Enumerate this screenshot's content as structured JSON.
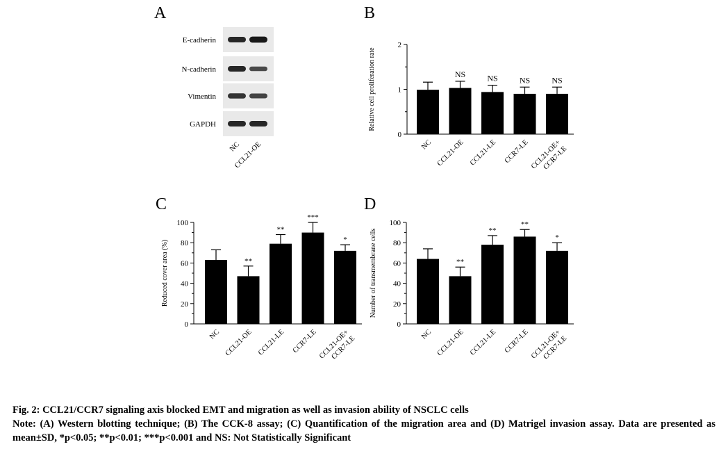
{
  "figure": {
    "caption_title": "Fig. 2: CCL21/CCR7 signaling axis blocked EMT and migration as well as invasion ability of NSCLC cells",
    "caption_note": "Note: (A) Western blotting technique; (B) The CCK-8 assay; (C) Quantification of the migration area and (D) Matrigel invasion assay. Data are presented as mean±SD, *p<0.05; **p<0.01; ***p<0.001 and NS: Not Statistically Significant"
  },
  "panel_a": {
    "letter": "A",
    "proteins": [
      "E-cadherin",
      "N-cadherin",
      "Vimentin",
      "GAPDH"
    ],
    "lanes": [
      "NC",
      "CCL21-OE"
    ],
    "band_intensity": [
      [
        0.85,
        0.95
      ],
      [
        0.85,
        0.6
      ],
      [
        0.75,
        0.65
      ],
      [
        0.85,
        0.85
      ]
    ]
  },
  "chart_data": [
    {
      "panel": "B",
      "type": "bar",
      "categories": [
        [
          "NC"
        ],
        [
          "CCL21-OE"
        ],
        [
          "CCL21-LE"
        ],
        [
          "CCR7-LE"
        ],
        [
          "CCL21-OE+",
          "CCR7-LE"
        ]
      ],
      "values": [
        0.99,
        1.03,
        0.94,
        0.9,
        0.9
      ],
      "errors": [
        0.17,
        0.15,
        0.15,
        0.15,
        0.15
      ],
      "annotations": [
        "",
        "NS",
        "NS",
        "NS",
        "NS"
      ],
      "ylabel": "Relative cell proliferation rate",
      "ylim": [
        0,
        2
      ],
      "yticks": [
        0,
        1,
        2
      ],
      "grid": false
    },
    {
      "panel": "C",
      "type": "bar",
      "categories": [
        [
          "NC"
        ],
        [
          "CCL21-OE"
        ],
        [
          "CCL21-LE"
        ],
        [
          "CCR7-LE"
        ],
        [
          "CCL21-OE+",
          "CCR7-LE"
        ]
      ],
      "values": [
        63,
        47,
        79,
        90,
        72
      ],
      "errors": [
        10,
        10,
        9,
        10,
        6
      ],
      "annotations": [
        "",
        "**",
        "**",
        "***",
        "*"
      ],
      "ylabel": "Reduced cover area (%)",
      "ylim": [
        0,
        100
      ],
      "yticks": [
        0,
        20,
        40,
        60,
        80,
        100
      ],
      "grid": false
    },
    {
      "panel": "D",
      "type": "bar",
      "categories": [
        [
          "NC"
        ],
        [
          "CCL21-OE"
        ],
        [
          "CCL21-LE"
        ],
        [
          "CCR7-LE"
        ],
        [
          "CCL21-OE+",
          "CCR7-LE"
        ]
      ],
      "values": [
        64,
        47,
        78,
        86,
        72
      ],
      "errors": [
        10,
        9,
        9,
        7,
        8
      ],
      "annotations": [
        "",
        "**",
        "**",
        "**",
        "*"
      ],
      "ylabel": "Number of transmembrane cells",
      "ylim": [
        0,
        100
      ],
      "yticks": [
        0,
        20,
        40,
        60,
        80,
        100
      ],
      "grid": false
    }
  ]
}
